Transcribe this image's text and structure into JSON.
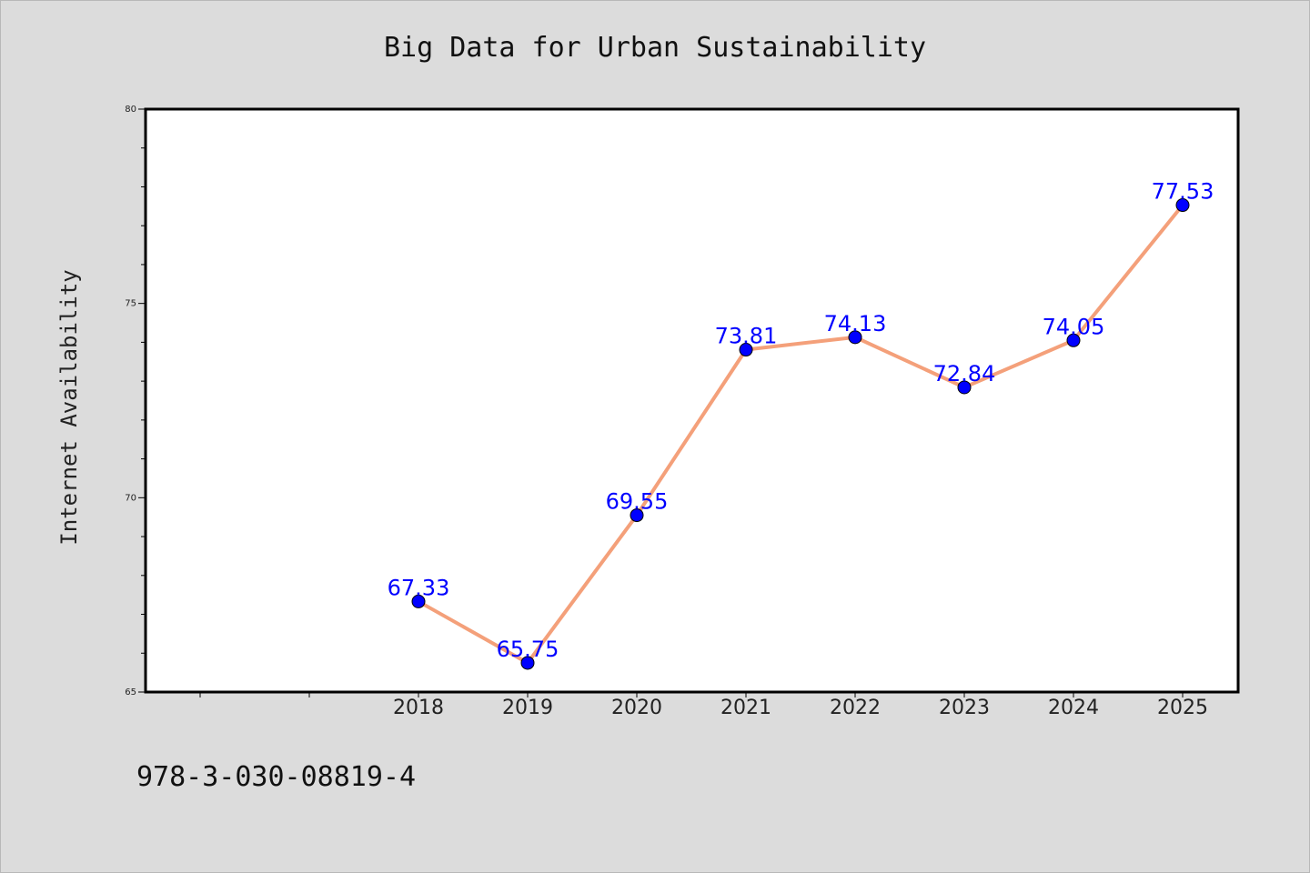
{
  "chart_data": {
    "type": "line",
    "title": "Big Data for Urban Sustainability",
    "xlabel": "",
    "ylabel": "Internet Availability",
    "categories": [
      "2018",
      "2019",
      "2020",
      "2021",
      "2022",
      "2023",
      "2024",
      "2025"
    ],
    "series": [
      {
        "values": [
          67.33,
          65.75,
          69.55,
          73.81,
          74.13,
          72.84,
          74.05,
          77.53
        ],
        "labels": [
          "67.33",
          "65.75",
          "69.55",
          "73.81",
          "74.13",
          "72.84",
          "74.05",
          "77.53"
        ]
      }
    ],
    "ylim": [
      65,
      80
    ],
    "yticks": [
      "65",
      "70",
      "75",
      "80"
    ],
    "grid": false,
    "legend": "none",
    "colors": {
      "line": "#f4a07a",
      "marker": "#0000ff",
      "label": "#0000ff"
    }
  },
  "footnote": "978-3-030-08819-4"
}
